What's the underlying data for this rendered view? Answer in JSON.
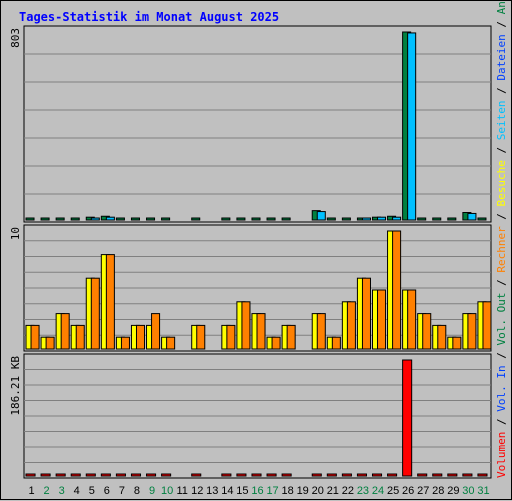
{
  "chart_data": {
    "type": "bar",
    "title": "Tages-Statistik im Monat August 2025",
    "days": [
      "1",
      "2",
      "3",
      "4",
      "5",
      "6",
      "7",
      "8",
      "9",
      "10",
      "11",
      "12",
      "13",
      "14",
      "15",
      "16",
      "17",
      "18",
      "19",
      "20",
      "21",
      "22",
      "23",
      "24",
      "25",
      "26",
      "27",
      "28",
      "29",
      "30",
      "31"
    ],
    "weekend_days": [
      "2",
      "3",
      "9",
      "10",
      "16",
      "17",
      "23",
      "24",
      "30",
      "31"
    ],
    "panels": [
      {
        "name": "hits",
        "ymax_label": "803",
        "ymax": 803,
        "series": [
          {
            "name": "Anfragen",
            "color": "#008040",
            "values": [
              4,
              4,
              4,
              4,
              12,
              16,
              4,
              4,
              4,
              4,
              0,
              4,
              0,
              4,
              4,
              4,
              4,
              4,
              0,
              40,
              4,
              4,
              8,
              12,
              16,
              803,
              4,
              4,
              4,
              32,
              4
            ]
          },
          {
            "name": "Dateien",
            "color": "#0040ff",
            "values": []
          },
          {
            "name": "Seiten",
            "color": "#00c0ff",
            "values": [
              0,
              0,
              0,
              0,
              8,
              12,
              0,
              0,
              0,
              0,
              0,
              0,
              0,
              0,
              0,
              0,
              0,
              0,
              0,
              36,
              0,
              0,
              8,
              12,
              12,
              799,
              0,
              0,
              0,
              28,
              0
            ]
          }
        ]
      },
      {
        "name": "visits",
        "ymax_label": "10",
        "ymax": 10,
        "series": [
          {
            "name": "Besuche",
            "color": "#ffff00",
            "values": [
              2,
              1,
              3,
              2,
              6,
              8,
              1,
              2,
              2,
              1,
              0,
              2,
              0,
              2,
              4,
              3,
              1,
              2,
              0,
              3,
              1,
              4,
              6,
              5,
              10,
              5,
              3,
              2,
              1,
              3,
              4
            ]
          },
          {
            "name": "Rechner",
            "color": "#ff8000",
            "values": [
              2,
              1,
              3,
              2,
              6,
              8,
              1,
              2,
              3,
              1,
              0,
              2,
              0,
              2,
              4,
              3,
              1,
              2,
              0,
              3,
              1,
              4,
              6,
              5,
              10,
              5,
              3,
              2,
              1,
              3,
              4
            ]
          }
        ]
      },
      {
        "name": "volume",
        "ymax_label": "186.21 KB",
        "ymax": 186.21,
        "series": [
          {
            "name": "Volumen",
            "color": "#ff0000",
            "values": [
              1,
              1,
              1,
              1,
              1,
              2,
              1,
              1,
              1,
              1,
              0,
              1,
              0,
              1,
              1,
              1,
              1,
              1,
              0,
              1,
              1,
              1,
              1,
              2,
              1,
              186.21,
              1,
              1,
              1,
              1,
              1
            ]
          },
          {
            "name": "Vol. In",
            "color": "#0040ff",
            "values": []
          },
          {
            "name": "Vol. Out",
            "color": "#008040",
            "values": []
          }
        ]
      }
    ],
    "right_legend": [
      {
        "text": "Volumen",
        "color": "#ff0000"
      },
      {
        "text": "Vol. In",
        "color": "#0040ff"
      },
      {
        "text": "Vol. Out",
        "color": "#008040"
      },
      {
        "text": "Rechner",
        "color": "#ff8000"
      },
      {
        "text": "Besuche",
        "color": "#ffff00"
      },
      {
        "text": "Seiten",
        "color": "#00c0ff"
      },
      {
        "text": "Dateien",
        "color": "#0040ff"
      },
      {
        "text": "Anfragen",
        "color": "#008040"
      }
    ],
    "legend_separator": "/",
    "colors": {
      "background": "#c0c0c0",
      "title": "#0000ff",
      "grid": "#808080",
      "day_label": "#000000",
      "weekend_label": "#008040",
      "separator": "#000000"
    }
  }
}
